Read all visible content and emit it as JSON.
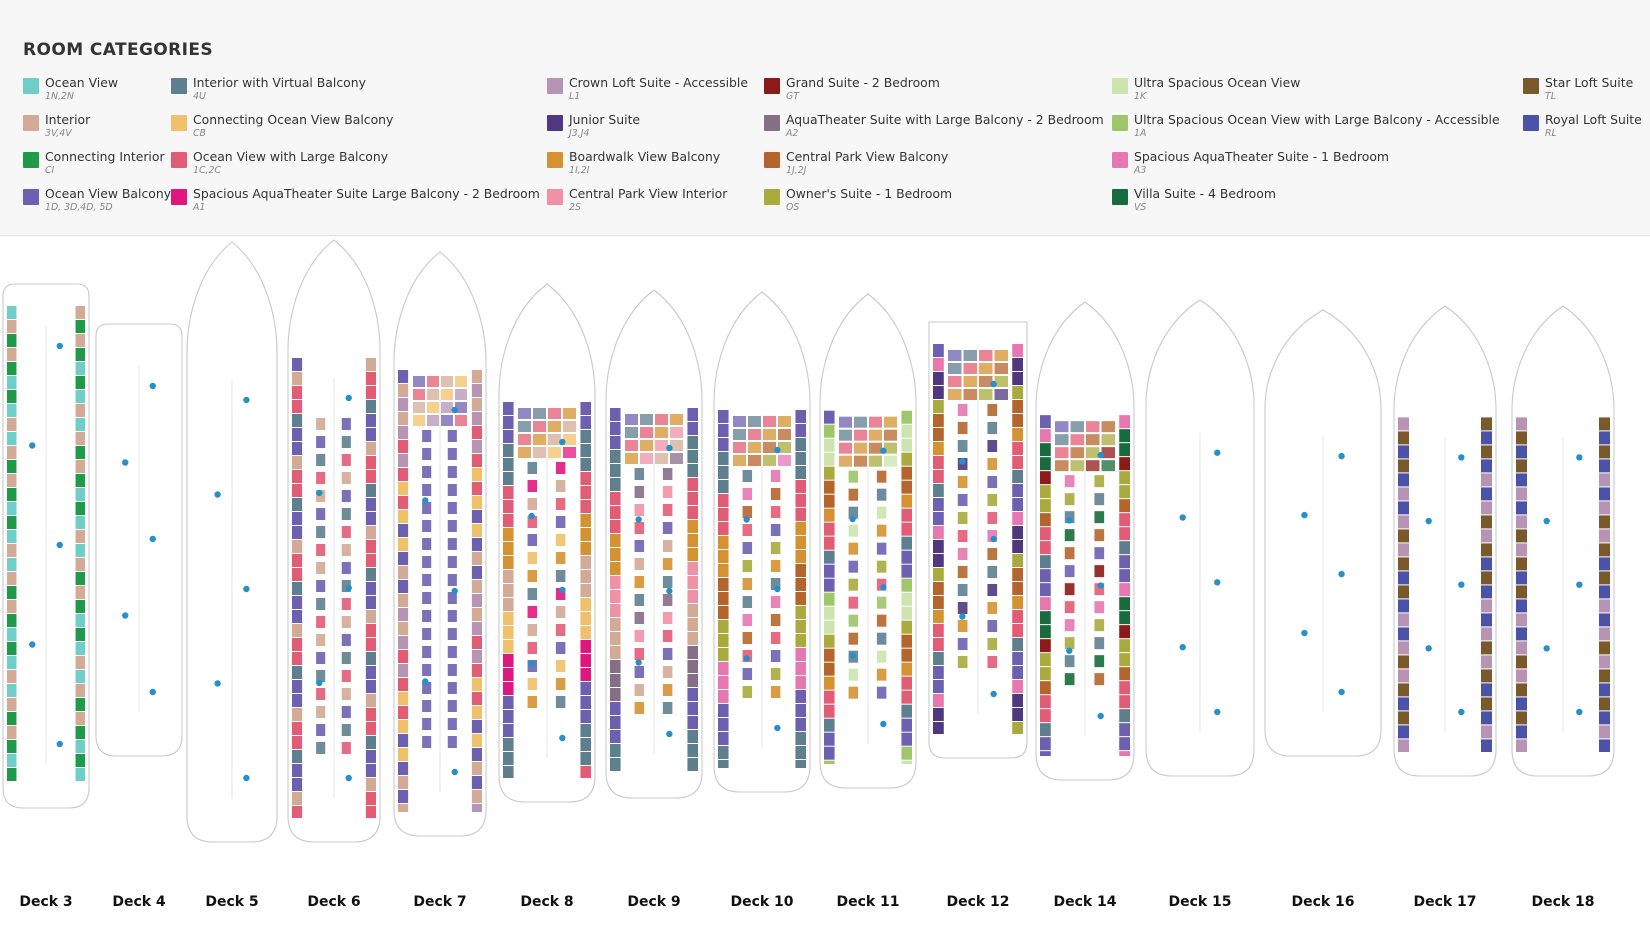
{
  "legend": {
    "title": "ROOM CATEGORIES",
    "columns": [
      [
        {
          "name": "Ocean View",
          "codes": "1N,2N",
          "color": "#6fcfc8"
        },
        {
          "name": "Interior",
          "codes": "3V,4V",
          "color": "#d3aa96"
        },
        {
          "name": "Connecting Interior",
          "codes": "CI",
          "color": "#1f9a4a"
        },
        {
          "name": "Ocean View Balcony",
          "codes": "1D, 3D,4D, 5D",
          "color": "#6e60b0"
        }
      ],
      [
        {
          "name": "Interior with Virtual Balcony",
          "codes": "4U",
          "color": "#5e7f8e"
        },
        {
          "name": "Connecting Ocean View Balcony",
          "codes": "CB",
          "color": "#f1c06a"
        },
        {
          "name": "Ocean View with Large Balcony",
          "codes": "1C,2C",
          "color": "#e35c75"
        },
        {
          "name": "Spacious AquaTheater Suite Large Balcony - 2 Bedroom",
          "codes": "A1",
          "color": "#e0177f"
        }
      ],
      [
        {
          "name": "Crown Loft Suite - Accessible",
          "codes": "L1",
          "color": "#b793b4"
        },
        {
          "name": "Junior Suite",
          "codes": "J3,J4",
          "color": "#4f3880"
        },
        {
          "name": "Boardwalk View Balcony",
          "codes": "1I,2I",
          "color": "#d69130"
        },
        {
          "name": "Central Park View Interior",
          "codes": "2S",
          "color": "#f092a6"
        }
      ],
      [
        {
          "name": "Grand Suite - 2 Bedroom",
          "codes": "GT",
          "color": "#8c1a1a"
        },
        {
          "name": "AquaTheater Suite with Large Balcony - 2 Bedroom",
          "codes": "A2",
          "color": "#876e87"
        },
        {
          "name": "Central Park View Balcony",
          "codes": "1J,2J",
          "color": "#b5652b"
        },
        {
          "name": "Owner's Suite - 1 Bedroom",
          "codes": "OS",
          "color": "#a9ab3e"
        }
      ],
      [
        {
          "name": "Ultra Spacious Ocean View",
          "codes": "1K",
          "color": "#cde4b0"
        },
        {
          "name": "Ultra Spacious Ocean View with Large Balcony - Accessible",
          "codes": "1A",
          "color": "#9dc76a"
        },
        {
          "name": "Spacious AquaTheater Suite - 1 Bedroom",
          "codes": "A3",
          "color": "#e677b1"
        },
        {
          "name": "Villa Suite - 4 Bedroom",
          "codes": "VS",
          "color": "#176b3c"
        }
      ],
      [
        {
          "name": "Star Loft Suite",
          "codes": "TL",
          "color": "#7a5a2a"
        },
        {
          "name": "Royal Loft Suite",
          "codes": "RL",
          "color": "#4b53a8"
        }
      ]
    ]
  },
  "decks": [
    {
      "label": "Deck 3",
      "cabins": [
        "1N,2N",
        "3V,4V",
        "CI"
      ]
    },
    {
      "label": "Deck 4",
      "cabins": []
    },
    {
      "label": "Deck 5",
      "cabins": []
    },
    {
      "label": "Deck 6",
      "cabins": [
        "1D, 3D,4D, 5D",
        "4U",
        "1C,2C",
        "3V,4V"
      ]
    },
    {
      "label": "Deck 7",
      "cabins": [
        "1D, 3D,4D, 5D",
        "1C,2C",
        "3V,4V",
        "CB",
        "L1"
      ]
    },
    {
      "label": "Deck 8",
      "cabins": [
        "1D, 3D,4D, 5D",
        "4U",
        "1C,2C",
        "1I,2I",
        "3V,4V",
        "CB",
        "A1"
      ]
    },
    {
      "label": "Deck 9",
      "cabins": [
        "1D, 3D,4D, 5D",
        "4U",
        "1C,2C",
        "1I,2I",
        "2S",
        "3V,4V",
        "A2"
      ]
    },
    {
      "label": "Deck 10",
      "cabins": [
        "1D, 3D,4D, 5D",
        "4U",
        "1C,2C",
        "1I,2I",
        "1J,2J",
        "OS",
        "A3"
      ]
    },
    {
      "label": "Deck 11",
      "cabins": [
        "1D, 3D,4D, 5D",
        "4U",
        "1C,2C",
        "1I,2I",
        "1J,2J",
        "OS",
        "1K",
        "1A"
      ]
    },
    {
      "label": "Deck 12",
      "cabins": [
        "1D, 3D,4D, 5D",
        "4U",
        "1C,2C",
        "1I,2I",
        "1J,2J",
        "OS",
        "J3,J4",
        "A3"
      ]
    },
    {
      "label": "Deck 14",
      "cabins": [
        "1D, 3D,4D, 5D",
        "4U",
        "1C,2C",
        "1J,2J",
        "OS",
        "GT",
        "VS",
        "A3"
      ]
    },
    {
      "label": "Deck 15",
      "cabins": []
    },
    {
      "label": "Deck 16",
      "cabins": []
    },
    {
      "label": "Deck 17",
      "cabins": [
        "L1",
        "TL",
        "RL"
      ]
    },
    {
      "label": "Deck 18",
      "cabins": [
        "L1",
        "TL",
        "RL"
      ]
    }
  ]
}
